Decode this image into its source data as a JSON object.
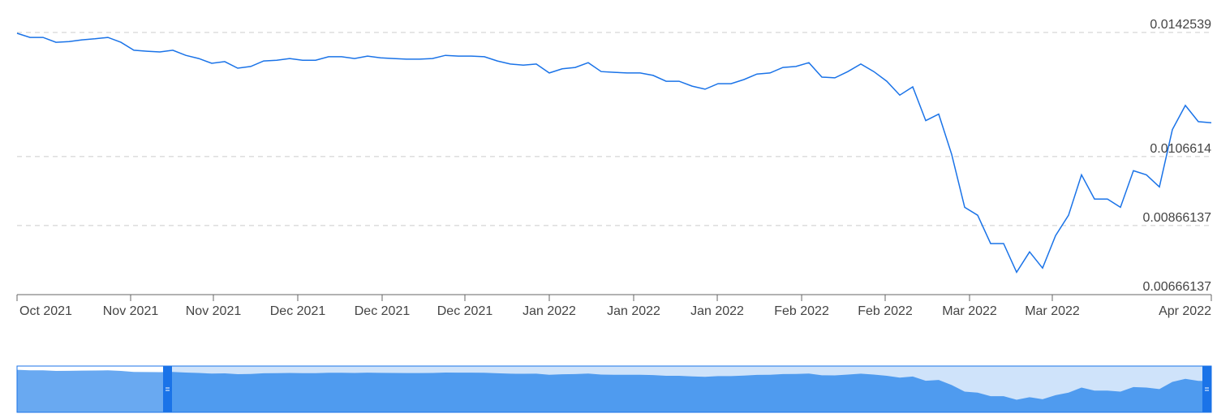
{
  "chart_data": {
    "type": "line",
    "series": [
      {
        "color": "#1a73e8",
        "values": [
          0.01423,
          0.01411,
          0.01411,
          0.01397,
          0.01399,
          0.01404,
          0.01407,
          0.01411,
          0.01397,
          0.01374,
          0.01371,
          0.01369,
          0.01374,
          0.01359,
          0.0135,
          0.01336,
          0.01341,
          0.01322,
          0.01327,
          0.01343,
          0.01345,
          0.0135,
          0.01345,
          0.01345,
          0.01355,
          0.01355,
          0.0135,
          0.01357,
          0.01352,
          0.0135,
          0.01348,
          0.01348,
          0.0135,
          0.01359,
          0.01357,
          0.01357,
          0.01355,
          0.01343,
          0.01334,
          0.01331,
          0.01334,
          0.01308,
          0.0132,
          0.01324,
          0.01338,
          0.01312,
          0.0131,
          0.01308,
          0.01308,
          0.01301,
          0.01284,
          0.01284,
          0.0127,
          0.01261,
          0.01277,
          0.01277,
          0.01289,
          0.01305,
          0.01308,
          0.01324,
          0.01327,
          0.01338,
          0.01296,
          0.01294,
          0.01312,
          0.01334,
          0.01312,
          0.01284,
          0.01244,
          0.01268,
          0.0117,
          0.01189,
          0.01072,
          0.00919,
          0.00896,
          0.00814,
          0.00814,
          0.00731,
          0.0079,
          0.00743,
          0.00837,
          0.00896,
          0.01013,
          0.00943,
          0.00943,
          0.00919,
          0.01025,
          0.01013,
          0.00978,
          0.01144,
          0.01214,
          0.01167,
          0.01164
        ]
      }
    ],
    "xlim": [
      0,
      92
    ],
    "xticks": [
      {
        "value": 0,
        "label": "Oct 2021"
      },
      {
        "value": 8.75,
        "label": "Nov 2021"
      },
      {
        "value": 15.125,
        "label": "Nov 2021"
      },
      {
        "value": 21.625,
        "label": "Dec 2021"
      },
      {
        "value": 28.125,
        "label": "Dec 2021"
      },
      {
        "value": 34.5,
        "label": "Dec 2021"
      },
      {
        "value": 41,
        "label": "Jan 2022"
      },
      {
        "value": 47.5,
        "label": "Jan 2022"
      },
      {
        "value": 53.94,
        "label": "Jan 2022"
      },
      {
        "value": 60.44,
        "label": "Feb 2022"
      },
      {
        "value": 66.875,
        "label": "Feb 2022"
      },
      {
        "value": 73.375,
        "label": "Mar 2022"
      },
      {
        "value": 79.75,
        "label": "Mar 2022"
      },
      {
        "value": 92,
        "label": "Apr 2022"
      }
    ],
    "ylim": [
      0.00666137,
      0.0142539
    ],
    "yticks": [
      0.00666137,
      0.00866137,
      0.0106614,
      0.0142539
    ],
    "grid": true
  }
}
